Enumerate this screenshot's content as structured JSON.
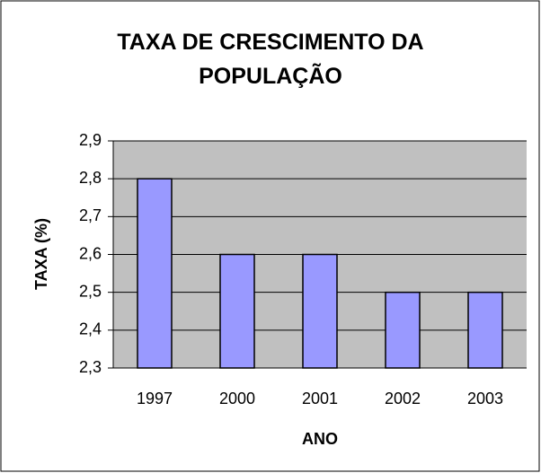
{
  "chart_data": {
    "type": "bar",
    "title": "TAXA DE CRESCIMENTO DA POPULAÇÃO",
    "x_label": "ANO",
    "y_label": "TAXA (%)",
    "categories": [
      "1997",
      "2000",
      "2001",
      "2002",
      "2003"
    ],
    "values": [
      2.8,
      2.6,
      2.6,
      2.5,
      2.5
    ],
    "color": "#9999ff",
    "ylim": [
      2.3,
      2.9
    ],
    "yticks": [
      {
        "value": 2.3,
        "label": "2,3"
      },
      {
        "value": 2.4,
        "label": "2,4"
      },
      {
        "value": 2.5,
        "label": "2,5"
      },
      {
        "value": 2.6,
        "label": "2,6"
      },
      {
        "value": 2.7,
        "label": "2,7"
      },
      {
        "value": 2.8,
        "label": "2,8"
      },
      {
        "value": 2.9,
        "label": "2,9"
      }
    ],
    "grid": true
  }
}
